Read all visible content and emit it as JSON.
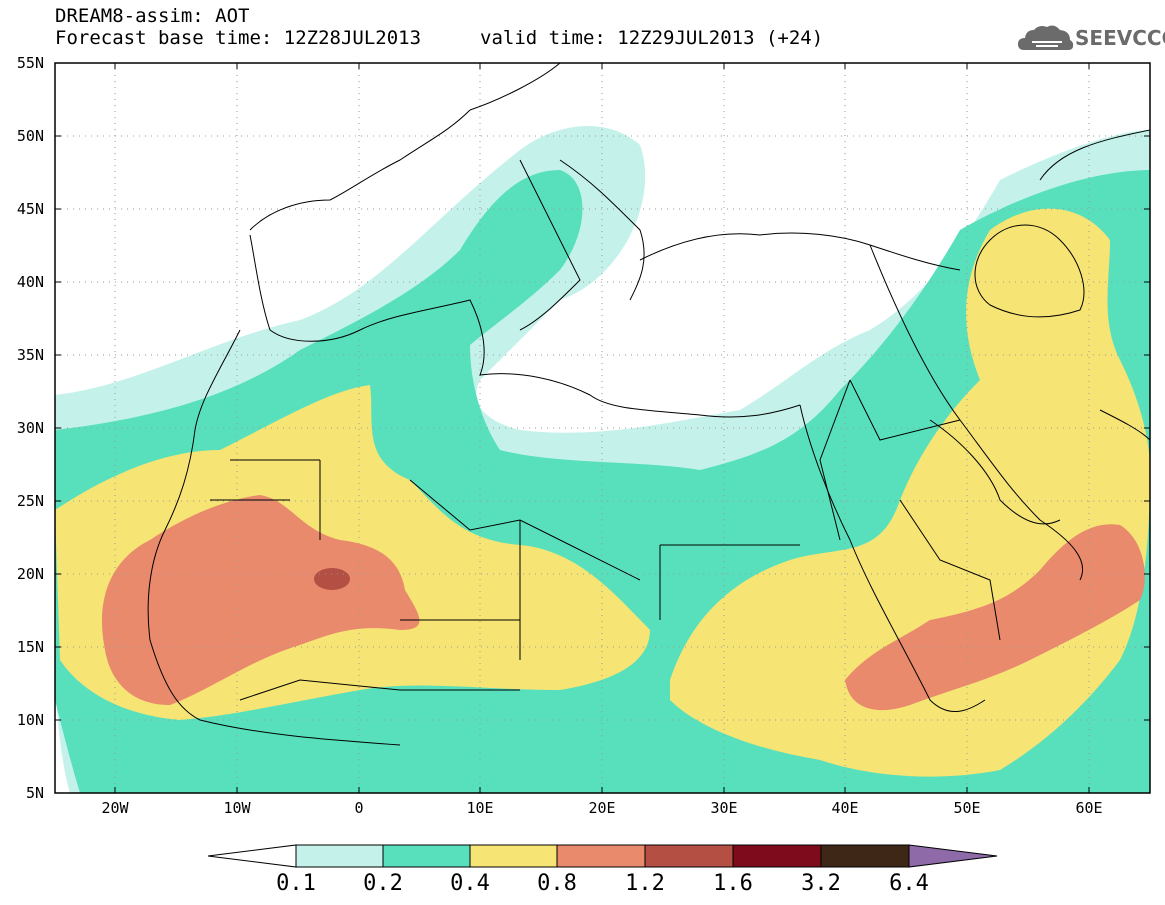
{
  "title": {
    "line1": "DREAM8-assim: AOT",
    "line2": "Forecast base time: 12Z28JUL2013",
    "valid": "valid time: 12Z29JUL2013 (+24)"
  },
  "logo": {
    "text": "SEEVCCC",
    "icon": "cloud-icon"
  },
  "map": {
    "lat_labels": [
      "55N",
      "50N",
      "45N",
      "40N",
      "35N",
      "30N",
      "25N",
      "20N",
      "15N",
      "10N",
      "5N"
    ],
    "lon_labels": [
      "20W",
      "10W",
      "0",
      "10E",
      "20E",
      "30E",
      "40E",
      "50E",
      "60E"
    ],
    "lon_range": [
      -25,
      65
    ],
    "lat_range": [
      5,
      55
    ],
    "grid": "dotted"
  },
  "colorbar": {
    "levels": [
      "0.1",
      "0.2",
      "0.4",
      "0.8",
      "1.2",
      "1.6",
      "3.2",
      "6.4"
    ],
    "colors": [
      "#ffffff",
      "#c4f2ea",
      "#58e0bc",
      "#f6e474",
      "#e98a6c",
      "#b34f43",
      "#7d0b1c",
      "#3e2716",
      "#8f6aa8"
    ]
  }
}
